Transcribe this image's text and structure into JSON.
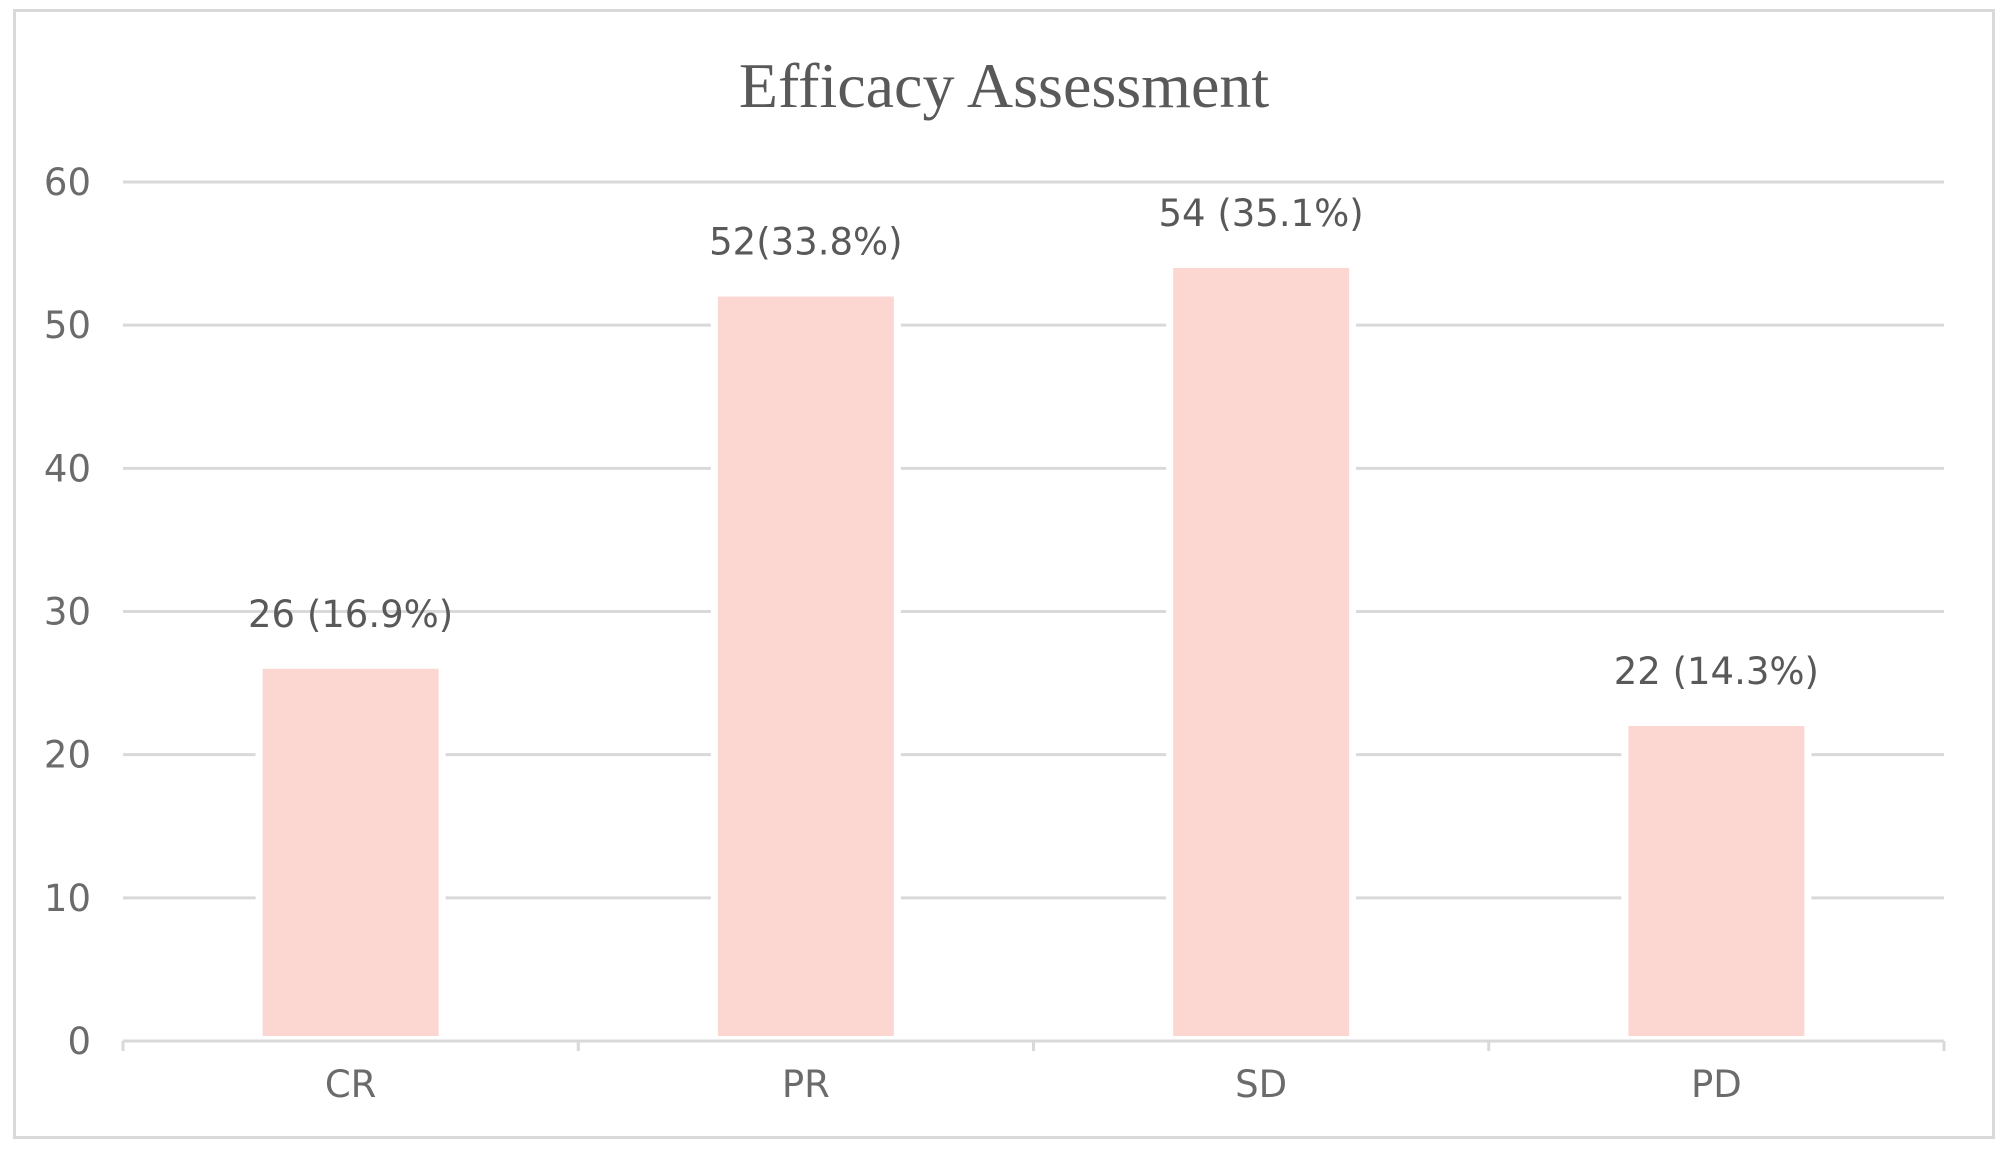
{
  "chart_data": {
    "type": "bar",
    "title": "Efficacy Assessment",
    "categories": [
      "CR",
      "PR",
      "SD",
      "PD"
    ],
    "values": [
      26,
      52,
      54,
      22
    ],
    "data_labels": [
      "26 (16.9%)",
      "52(33.8%)",
      "54 (35.1%)",
      "22 (14.3%)"
    ],
    "xlabel": "",
    "ylabel": "",
    "ylim": [
      0,
      60
    ],
    "yticks": [
      0,
      10,
      20,
      30,
      40,
      50,
      60
    ],
    "grid": true,
    "legend": "none",
    "bar_color": "#fcd7d2",
    "grid_color": "#d9d9d9",
    "text_color": "#595959"
  }
}
